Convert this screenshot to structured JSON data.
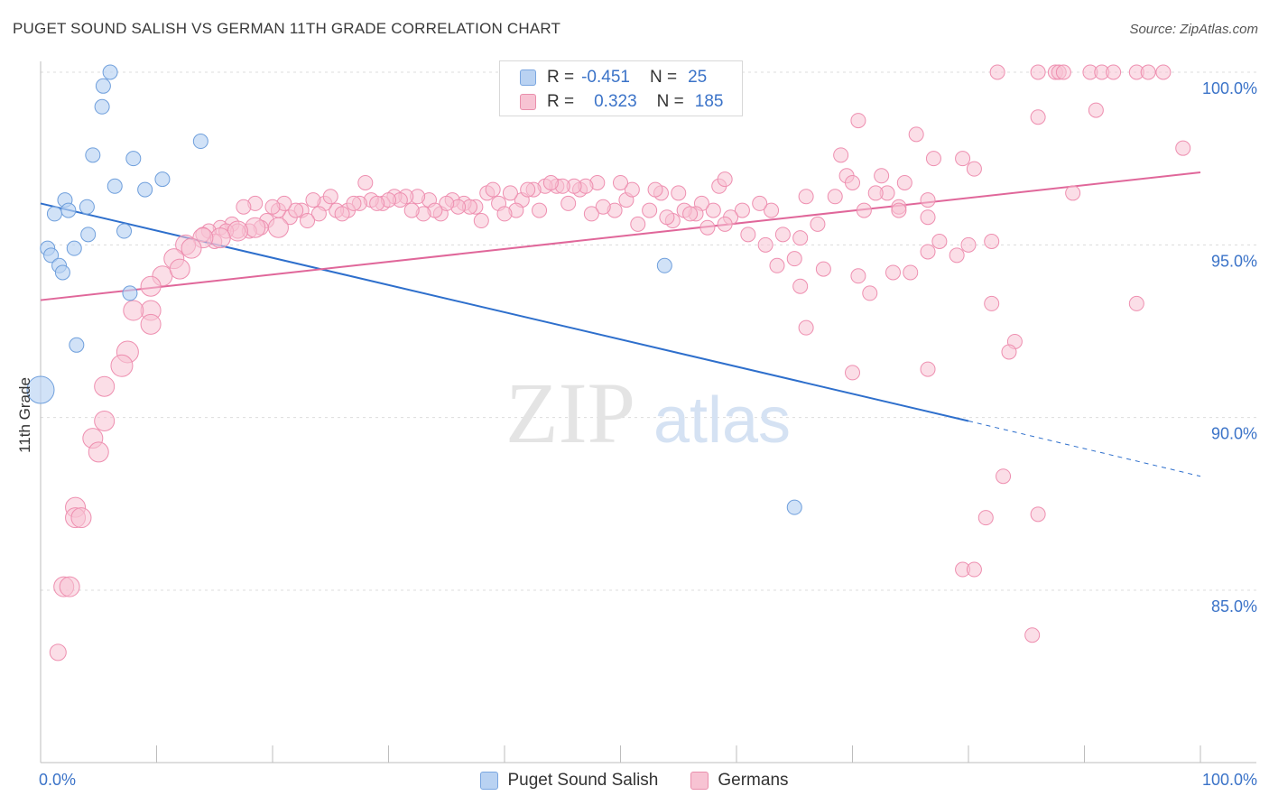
{
  "header": {
    "title": "PUGET SOUND SALISH VS GERMAN 11TH GRADE CORRELATION CHART",
    "source": "Source: ZipAtlas.com"
  },
  "watermark": {
    "zip": "ZIP",
    "atlas": "atlas"
  },
  "legend": {
    "rows": [
      {
        "r_label": "R =",
        "r_value": "-0.451",
        "n_label": "N =",
        "n_value": "25",
        "color": "#b9d2f2",
        "border": "#7aa6e0"
      },
      {
        "r_label": "R =",
        "r_value": "0.323",
        "n_label": "N =",
        "n_value": "185",
        "color": "#f7c3d3",
        "border": "#e98fac"
      }
    ]
  },
  "bottom_legend": [
    {
      "label": "Puget Sound Salish",
      "color": "#b9d2f2",
      "border": "#7aa6e0"
    },
    {
      "label": "Germans",
      "color": "#f7c3d3",
      "border": "#e98fac"
    }
  ],
  "chart_data": {
    "type": "scatter",
    "title": "PUGET SOUND SALISH VS GERMAN 11TH GRADE CORRELATION CHART",
    "xlabel": "",
    "ylabel": "11th Grade",
    "xlim": [
      0,
      100
    ],
    "ylim": [
      80.0,
      100.5
    ],
    "x_tick_labels": [
      "0.0%",
      "100.0%"
    ],
    "y_ticks": [
      85,
      90,
      95,
      100
    ],
    "y_tick_labels": [
      "85.0%",
      "90.0%",
      "95.0%",
      "100.0%"
    ],
    "grid": true,
    "colors": {
      "salish": "#6f9fdc",
      "germans": "#ee8fb0",
      "salish_line": "#2e6fcc",
      "germans_line": "#e0679a"
    },
    "series": [
      {
        "name": "Puget Sound Salish",
        "trend": {
          "x0": 0,
          "y0": 96.2,
          "x1": 80,
          "y1": 89.9,
          "dash_to_x": 100,
          "dash_to_y": 88.3
        },
        "points": [
          [
            6.0,
            100.0,
            8
          ],
          [
            5.4,
            99.6,
            8
          ],
          [
            5.3,
            99.0,
            8
          ],
          [
            13.8,
            98.0,
            8
          ],
          [
            4.5,
            97.6,
            8
          ],
          [
            8.0,
            97.5,
            8
          ],
          [
            6.4,
            96.7,
            8
          ],
          [
            9.0,
            96.6,
            8
          ],
          [
            10.5,
            96.9,
            8
          ],
          [
            2.1,
            96.3,
            8
          ],
          [
            2.4,
            96.0,
            8
          ],
          [
            4.0,
            96.1,
            8
          ],
          [
            1.2,
            95.9,
            8
          ],
          [
            7.2,
            95.4,
            8
          ],
          [
            4.1,
            95.3,
            8
          ],
          [
            0.6,
            94.9,
            8
          ],
          [
            2.9,
            94.9,
            8
          ],
          [
            0.9,
            94.7,
            8
          ],
          [
            1.6,
            94.4,
            8
          ],
          [
            1.9,
            94.2,
            8
          ],
          [
            7.7,
            93.6,
            8
          ],
          [
            3.1,
            92.1,
            8
          ],
          [
            0.0,
            90.8,
            15
          ],
          [
            53.8,
            94.4,
            8
          ],
          [
            65.0,
            87.4,
            8
          ]
        ]
      },
      {
        "name": "Germans",
        "trend": {
          "x0": 0,
          "y0": 93.4,
          "x1": 100,
          "y1": 97.1
        },
        "points": [
          [
            82.5,
            100.0,
            8
          ],
          [
            86.0,
            100.0,
            8
          ],
          [
            87.5,
            100.0,
            8
          ],
          [
            87.8,
            100.0,
            8
          ],
          [
            88.2,
            100.0,
            8
          ],
          [
            90.5,
            100.0,
            8
          ],
          [
            91.5,
            100.0,
            8
          ],
          [
            92.5,
            100.0,
            8
          ],
          [
            94.5,
            100.0,
            8
          ],
          [
            95.5,
            100.0,
            8
          ],
          [
            96.8,
            100.0,
            8
          ],
          [
            86.0,
            98.7,
            8
          ],
          [
            91.0,
            98.9,
            8
          ],
          [
            70.5,
            98.6,
            8
          ],
          [
            75.5,
            98.2,
            8
          ],
          [
            69.0,
            97.6,
            8
          ],
          [
            77.0,
            97.5,
            8
          ],
          [
            79.5,
            97.5,
            8
          ],
          [
            80.5,
            97.2,
            8
          ],
          [
            98.5,
            97.8,
            8
          ],
          [
            69.5,
            97.0,
            8
          ],
          [
            72.5,
            97.0,
            8
          ],
          [
            74.5,
            96.8,
            8
          ],
          [
            70.0,
            96.8,
            8
          ],
          [
            73.0,
            96.5,
            8
          ],
          [
            72.0,
            96.5,
            8
          ],
          [
            89.0,
            96.5,
            8
          ],
          [
            66.0,
            96.4,
            8
          ],
          [
            68.5,
            96.4,
            8
          ],
          [
            76.5,
            96.3,
            8
          ],
          [
            74.0,
            96.1,
            8
          ],
          [
            71.0,
            96.0,
            8
          ],
          [
            74.0,
            96.0,
            8
          ],
          [
            76.5,
            95.8,
            8
          ],
          [
            63.0,
            96.0,
            8
          ],
          [
            62.0,
            96.2,
            8
          ],
          [
            60.5,
            96.0,
            8
          ],
          [
            59.5,
            95.8,
            8
          ],
          [
            58.0,
            96.0,
            8
          ],
          [
            57.0,
            96.2,
            8
          ],
          [
            56.5,
            95.9,
            8
          ],
          [
            55.5,
            96.0,
            8
          ],
          [
            55.0,
            96.5,
            8
          ],
          [
            53.5,
            96.5,
            8
          ],
          [
            52.5,
            96.0,
            8
          ],
          [
            51.5,
            95.6,
            8
          ],
          [
            50.5,
            96.3,
            8
          ],
          [
            49.5,
            96.0,
            8
          ],
          [
            48.5,
            96.1,
            8
          ],
          [
            47.5,
            95.9,
            8
          ],
          [
            46.5,
            96.6,
            8
          ],
          [
            45.5,
            96.2,
            8
          ],
          [
            44.5,
            96.7,
            8
          ],
          [
            43.5,
            96.7,
            8
          ],
          [
            42.5,
            96.6,
            8
          ],
          [
            41.5,
            96.3,
            8
          ],
          [
            40.5,
            96.5,
            8
          ],
          [
            39.5,
            96.2,
            8
          ],
          [
            38.5,
            96.5,
            8
          ],
          [
            37.5,
            96.1,
            8
          ],
          [
            36.5,
            96.2,
            8
          ],
          [
            35.5,
            96.3,
            8
          ],
          [
            34.5,
            95.9,
            8
          ],
          [
            33.5,
            96.3,
            8
          ],
          [
            32.5,
            96.4,
            8
          ],
          [
            31.5,
            96.4,
            8
          ],
          [
            30.5,
            96.4,
            8
          ],
          [
            29.5,
            96.2,
            8
          ],
          [
            28.5,
            96.3,
            8
          ],
          [
            27.5,
            96.2,
            8
          ],
          [
            26.5,
            96.0,
            8
          ],
          [
            25.5,
            96.0,
            8
          ],
          [
            24.5,
            96.2,
            8
          ],
          [
            23.5,
            96.3,
            8
          ],
          [
            22.5,
            96.0,
            8
          ],
          [
            21.5,
            95.8,
            8
          ],
          [
            20.5,
            96.0,
            8
          ],
          [
            19.5,
            95.7,
            8
          ],
          [
            18.5,
            96.2,
            8
          ],
          [
            17.5,
            96.1,
            8
          ],
          [
            16.5,
            95.6,
            8
          ],
          [
            15.5,
            95.5,
            8
          ],
          [
            14.5,
            95.4,
            8
          ],
          [
            53.0,
            96.6,
            8
          ],
          [
            54.5,
            95.7,
            8
          ],
          [
            56.0,
            95.9,
            8
          ],
          [
            57.5,
            95.5,
            8
          ],
          [
            59.0,
            95.6,
            8
          ],
          [
            61.0,
            95.3,
            8
          ],
          [
            62.5,
            95.0,
            8
          ],
          [
            64.0,
            95.3,
            8
          ],
          [
            65.5,
            95.2,
            8
          ],
          [
            67.0,
            95.6,
            8
          ],
          [
            63.5,
            94.4,
            8
          ],
          [
            65.0,
            94.6,
            8
          ],
          [
            67.5,
            94.3,
            8
          ],
          [
            70.5,
            94.1,
            8
          ],
          [
            73.5,
            94.2,
            8
          ],
          [
            75.0,
            94.2,
            8
          ],
          [
            76.5,
            94.8,
            8
          ],
          [
            77.5,
            95.1,
            8
          ],
          [
            80.0,
            95.0,
            8
          ],
          [
            82.0,
            95.1,
            8
          ],
          [
            79.0,
            94.7,
            8
          ],
          [
            65.5,
            93.8,
            8
          ],
          [
            71.5,
            93.6,
            8
          ],
          [
            82.0,
            93.3,
            8
          ],
          [
            94.5,
            93.3,
            8
          ],
          [
            66.0,
            92.6,
            8
          ],
          [
            84.0,
            92.2,
            8
          ],
          [
            83.5,
            91.9,
            8
          ],
          [
            70.0,
            91.3,
            8
          ],
          [
            76.5,
            91.4,
            8
          ],
          [
            83.0,
            88.3,
            8
          ],
          [
            86.0,
            87.2,
            8
          ],
          [
            81.5,
            87.1,
            8
          ],
          [
            79.5,
            85.6,
            8
          ],
          [
            80.5,
            85.6,
            8
          ],
          [
            85.5,
            83.7,
            8
          ],
          [
            58.5,
            96.7,
            8
          ],
          [
            59.0,
            96.9,
            8
          ],
          [
            54.0,
            95.8,
            8
          ],
          [
            51.0,
            96.6,
            8
          ],
          [
            50.0,
            96.8,
            8
          ],
          [
            48.0,
            96.8,
            8
          ],
          [
            47.0,
            96.7,
            8
          ],
          [
            46.0,
            96.7,
            8
          ],
          [
            45.0,
            96.7,
            8
          ],
          [
            44.0,
            96.8,
            8
          ],
          [
            43.0,
            96.0,
            8
          ],
          [
            42.0,
            96.6,
            8
          ],
          [
            41.0,
            96.0,
            8
          ],
          [
            40.0,
            95.9,
            8
          ],
          [
            39.0,
            96.6,
            8
          ],
          [
            38.0,
            95.7,
            8
          ],
          [
            37.0,
            96.1,
            8
          ],
          [
            36.0,
            96.1,
            8
          ],
          [
            35.0,
            96.2,
            8
          ],
          [
            34.0,
            96.0,
            8
          ],
          [
            33.0,
            95.9,
            8
          ],
          [
            32.0,
            96.0,
            8
          ],
          [
            31.0,
            96.3,
            8
          ],
          [
            30.0,
            96.3,
            8
          ],
          [
            29.0,
            96.2,
            8
          ],
          [
            28.0,
            96.8,
            8
          ],
          [
            27.0,
            96.2,
            8
          ],
          [
            26.0,
            95.9,
            8
          ],
          [
            25.0,
            96.4,
            8
          ],
          [
            24.0,
            95.9,
            8
          ],
          [
            23.0,
            95.7,
            8
          ],
          [
            22.0,
            96.0,
            8
          ],
          [
            21.0,
            96.2,
            8
          ],
          [
            20.0,
            96.1,
            8
          ],
          [
            19.0,
            95.5,
            8
          ],
          [
            18.0,
            95.4,
            8
          ],
          [
            17.0,
            95.4,
            8
          ],
          [
            16.0,
            95.4,
            8
          ],
          [
            15.0,
            95.1,
            8
          ],
          [
            14.0,
            95.3,
            8
          ],
          [
            20.5,
            95.5,
            11
          ],
          [
            18.5,
            95.5,
            11
          ],
          [
            17.0,
            95.4,
            11
          ],
          [
            15.5,
            95.2,
            11
          ],
          [
            14.0,
            95.2,
            11
          ],
          [
            12.5,
            95.0,
            11
          ],
          [
            11.5,
            94.6,
            11
          ],
          [
            10.5,
            94.1,
            11
          ],
          [
            9.5,
            93.8,
            11
          ],
          [
            13.0,
            94.9,
            11
          ],
          [
            12.0,
            94.3,
            11
          ],
          [
            9.5,
            93.1,
            11
          ],
          [
            8.0,
            93.1,
            11
          ],
          [
            9.5,
            92.7,
            11
          ],
          [
            7.5,
            91.9,
            12
          ],
          [
            7.0,
            91.5,
            12
          ],
          [
            5.5,
            90.9,
            11
          ],
          [
            5.5,
            89.9,
            11
          ],
          [
            4.5,
            89.4,
            11
          ],
          [
            5.0,
            89.0,
            11
          ],
          [
            3.0,
            87.4,
            11
          ],
          [
            3.0,
            87.1,
            11
          ],
          [
            3.5,
            87.1,
            11
          ],
          [
            2.0,
            85.1,
            11
          ],
          [
            2.5,
            85.1,
            11
          ],
          [
            1.5,
            83.2,
            9
          ]
        ]
      }
    ]
  }
}
